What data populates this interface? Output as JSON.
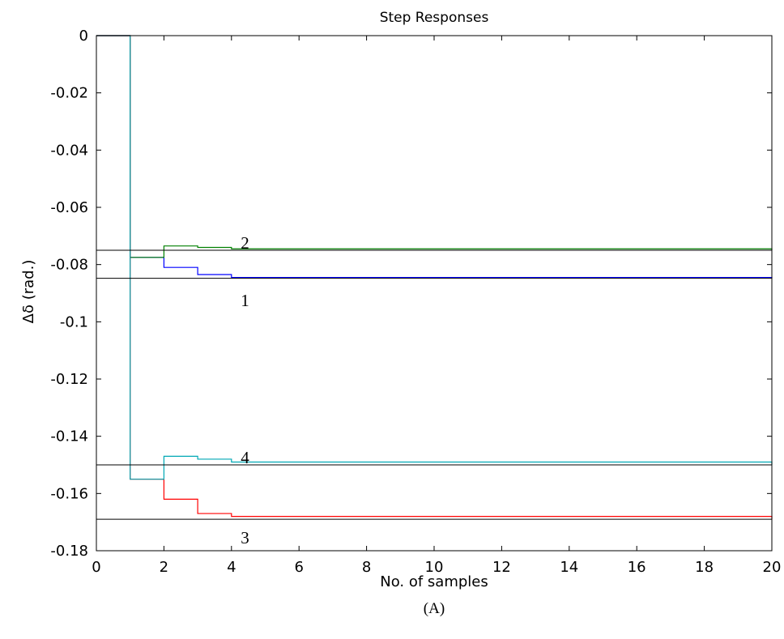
{
  "chart_data": {
    "type": "line",
    "title": "Step Responses",
    "xlabel": "No. of samples",
    "ylabel": "Δδ  (rad.)",
    "caption": "(A)",
    "xlim": [
      0,
      20
    ],
    "ylim": [
      -0.18,
      0
    ],
    "x_ticks": [
      0,
      2,
      4,
      6,
      8,
      10,
      12,
      14,
      16,
      18,
      20
    ],
    "y_ticks": [
      0,
      -0.02,
      -0.04,
      -0.06,
      -0.08,
      -0.1,
      -0.12,
      -0.14,
      -0.16,
      -0.18
    ],
    "grid": false,
    "step": true,
    "series": [
      {
        "color": "#0000ff",
        "x": [
          0,
          1,
          2,
          3,
          4,
          20
        ],
        "y": [
          0,
          -0.0775,
          -0.081,
          -0.0835,
          -0.0845,
          -0.0848
        ]
      },
      {
        "color": "#008000",
        "x": [
          0,
          1,
          2,
          3,
          4,
          20
        ],
        "y": [
          0,
          -0.0775,
          -0.0735,
          -0.074,
          -0.0745,
          -0.075
        ]
      },
      {
        "color": "#ff0000",
        "x": [
          0,
          1,
          2,
          3,
          4,
          20
        ],
        "y": [
          0,
          -0.155,
          -0.162,
          -0.167,
          -0.168,
          -0.169
        ]
      },
      {
        "color": "#00a8b5",
        "x": [
          0,
          1,
          2,
          3,
          4,
          20
        ],
        "y": [
          0,
          -0.155,
          -0.147,
          -0.148,
          -0.149,
          -0.15
        ]
      }
    ],
    "reference_lines": [
      -0.0848,
      -0.075,
      -0.15,
      -0.169
    ],
    "annotations": [
      {
        "text": "1",
        "x": 4.4,
        "y": -0.0925
      },
      {
        "text": "2",
        "x": 4.4,
        "y": -0.0725
      },
      {
        "text": "3",
        "x": 4.4,
        "y": -0.1755
      },
      {
        "text": "4",
        "x": 4.4,
        "y": -0.1475
      }
    ]
  }
}
